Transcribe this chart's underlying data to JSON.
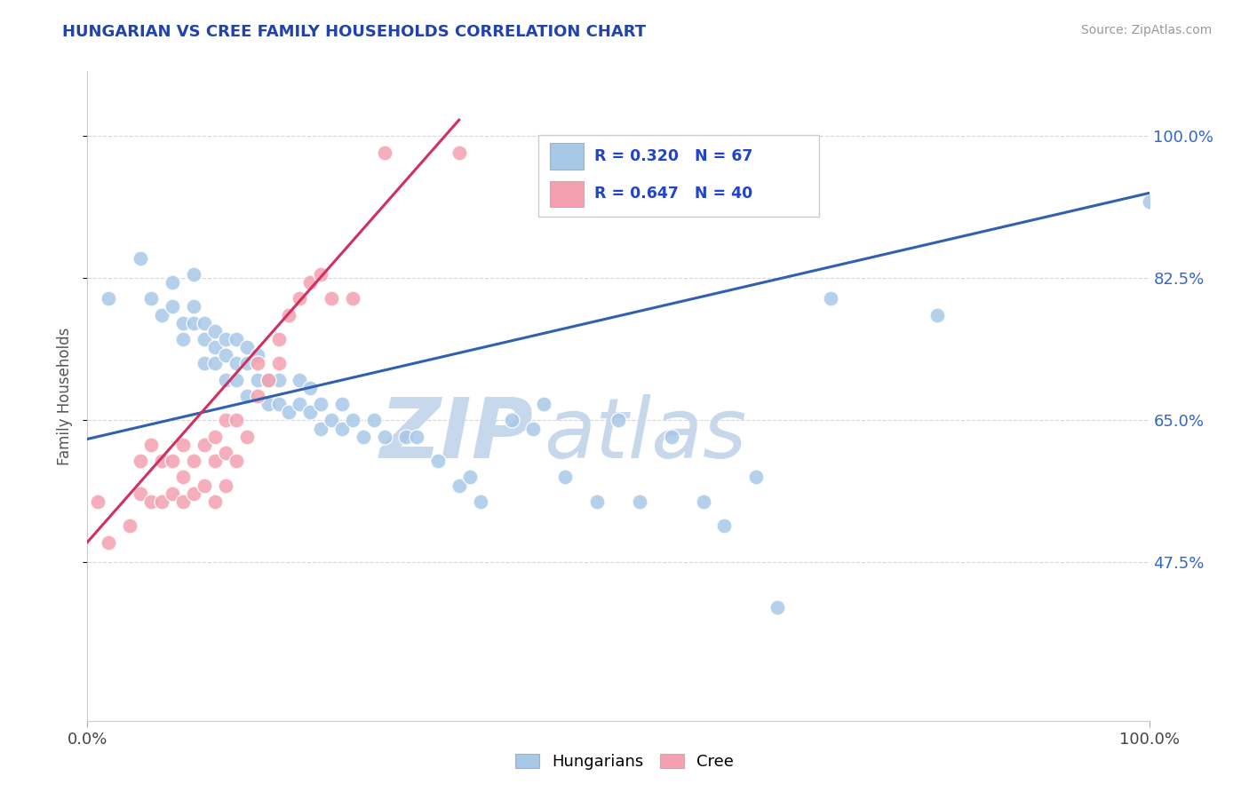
{
  "title": "HUNGARIAN VS CREE FAMILY HOUSEHOLDS CORRELATION CHART",
  "source": "Source: ZipAtlas.com",
  "ylabel": "Family Households",
  "xlim": [
    0,
    1
  ],
  "ylim": [
    0.28,
    1.08
  ],
  "yticks": [
    0.475,
    0.65,
    0.825,
    1.0
  ],
  "ytick_labels": [
    "47.5%",
    "65.0%",
    "82.5%",
    "100.0%"
  ],
  "blue_color": "#a8c8e8",
  "pink_color": "#f4a0b0",
  "blue_line_color": "#3060b0",
  "pink_line_color": "#d03060",
  "watermark_zip": "ZIP",
  "watermark_atlas": "atlas",
  "watermark_color": "#c8d8ec",
  "blue_scatter_x": [
    0.02,
    0.05,
    0.06,
    0.07,
    0.08,
    0.08,
    0.09,
    0.09,
    0.1,
    0.1,
    0.1,
    0.11,
    0.11,
    0.11,
    0.12,
    0.12,
    0.12,
    0.13,
    0.13,
    0.13,
    0.14,
    0.14,
    0.14,
    0.15,
    0.15,
    0.15,
    0.16,
    0.16,
    0.17,
    0.17,
    0.18,
    0.18,
    0.19,
    0.2,
    0.2,
    0.21,
    0.21,
    0.22,
    0.22,
    0.23,
    0.24,
    0.24,
    0.25,
    0.26,
    0.27,
    0.28,
    0.3,
    0.31,
    0.33,
    0.35,
    0.36,
    0.37,
    0.4,
    0.42,
    0.43,
    0.45,
    0.48,
    0.5,
    0.52,
    0.55,
    0.58,
    0.6,
    0.63,
    0.65,
    0.7,
    0.8,
    1.0
  ],
  "blue_scatter_y": [
    0.8,
    0.85,
    0.8,
    0.78,
    0.79,
    0.82,
    0.75,
    0.77,
    0.77,
    0.79,
    0.83,
    0.72,
    0.75,
    0.77,
    0.72,
    0.74,
    0.76,
    0.7,
    0.73,
    0.75,
    0.7,
    0.72,
    0.75,
    0.68,
    0.72,
    0.74,
    0.7,
    0.73,
    0.67,
    0.7,
    0.67,
    0.7,
    0.66,
    0.67,
    0.7,
    0.66,
    0.69,
    0.64,
    0.67,
    0.65,
    0.64,
    0.67,
    0.65,
    0.63,
    0.65,
    0.63,
    0.63,
    0.63,
    0.6,
    0.57,
    0.58,
    0.55,
    0.65,
    0.64,
    0.67,
    0.58,
    0.55,
    0.65,
    0.55,
    0.63,
    0.55,
    0.52,
    0.58,
    0.42,
    0.8,
    0.78,
    0.92
  ],
  "pink_scatter_x": [
    0.01,
    0.02,
    0.04,
    0.05,
    0.05,
    0.06,
    0.06,
    0.07,
    0.07,
    0.08,
    0.08,
    0.09,
    0.09,
    0.09,
    0.1,
    0.1,
    0.11,
    0.11,
    0.12,
    0.12,
    0.12,
    0.13,
    0.13,
    0.13,
    0.14,
    0.14,
    0.15,
    0.16,
    0.16,
    0.17,
    0.18,
    0.18,
    0.19,
    0.2,
    0.21,
    0.22,
    0.23,
    0.25,
    0.28,
    0.35
  ],
  "pink_scatter_y": [
    0.55,
    0.5,
    0.52,
    0.56,
    0.6,
    0.55,
    0.62,
    0.55,
    0.6,
    0.56,
    0.6,
    0.55,
    0.58,
    0.62,
    0.56,
    0.6,
    0.57,
    0.62,
    0.55,
    0.6,
    0.63,
    0.57,
    0.61,
    0.65,
    0.6,
    0.65,
    0.63,
    0.68,
    0.72,
    0.7,
    0.72,
    0.75,
    0.78,
    0.8,
    0.82,
    0.83,
    0.8,
    0.8,
    0.98,
    0.98
  ],
  "blue_trendline_x": [
    0.0,
    1.0
  ],
  "blue_trendline_y": [
    0.627,
    0.93
  ],
  "pink_trendline_x": [
    0.0,
    0.35
  ],
  "pink_trendline_y": [
    0.5,
    1.02
  ]
}
